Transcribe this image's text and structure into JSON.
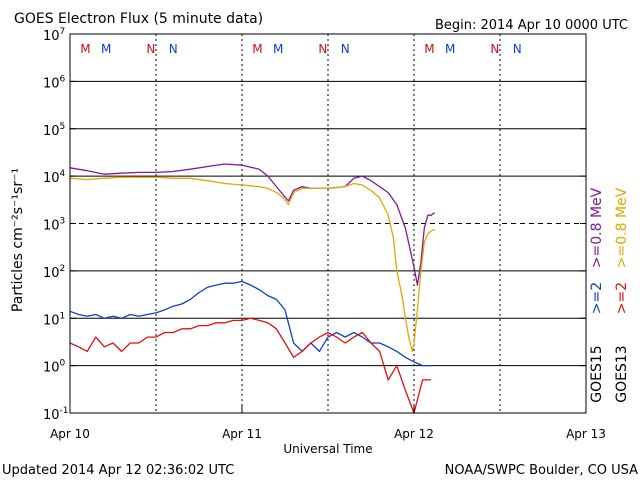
{
  "chart_data": {
    "type": "line",
    "title": "GOES Electron Flux (5 minute data)",
    "begin_label": "Begin: 2014 Apr 10 0000 UTC",
    "xlabel": "Universal Time",
    "ylabel": "Particles cm⁻²s⁻¹sr⁻¹",
    "x_unit": "days since 2014 Apr 10 00:00 UTC",
    "xlim": [
      0,
      3
    ],
    "ylim_log10": [
      -1,
      7
    ],
    "x_ticks": [
      {
        "x": 0,
        "label": "Apr 10"
      },
      {
        "x": 1,
        "label": "Apr 11"
      },
      {
        "x": 2,
        "label": "Apr 12"
      },
      {
        "x": 3,
        "label": "Apr 13"
      }
    ],
    "y_ticks": [
      {
        "exp": 7,
        "base": "10",
        "sup": "7"
      },
      {
        "exp": 6,
        "base": "10",
        "sup": "6"
      },
      {
        "exp": 5,
        "base": "10",
        "sup": "5"
      },
      {
        "exp": 4,
        "base": "10",
        "sup": "4"
      },
      {
        "exp": 3,
        "base": "10",
        "sup": "3"
      },
      {
        "exp": 2,
        "base": "10",
        "sup": "2"
      },
      {
        "exp": 1,
        "base": "10",
        "sup": "1"
      },
      {
        "exp": 0,
        "base": "10",
        "sup": "0"
      },
      {
        "exp": -1,
        "base": "10",
        "sup": "-1"
      }
    ],
    "grid_y_solid": [
      6,
      5,
      4,
      2,
      1,
      0
    ],
    "grid_y_dashed": [
      3
    ],
    "noon_dotted_x": [
      0.5,
      1.0,
      1.5,
      2.0,
      2.5
    ],
    "markers": [
      {
        "x": 0.09,
        "label": "M",
        "color": "#d01010"
      },
      {
        "x": 0.21,
        "label": "M",
        "color": "#1040c0"
      },
      {
        "x": 0.47,
        "label": "N",
        "color": "#d01010"
      },
      {
        "x": 0.6,
        "label": "N",
        "color": "#1040c0"
      },
      {
        "x": 1.09,
        "label": "M",
        "color": "#d01010"
      },
      {
        "x": 1.21,
        "label": "M",
        "color": "#1040c0"
      },
      {
        "x": 1.47,
        "label": "N",
        "color": "#d01010"
      },
      {
        "x": 1.6,
        "label": "N",
        "color": "#1040c0"
      },
      {
        "x": 2.09,
        "label": "M",
        "color": "#d01010"
      },
      {
        "x": 2.21,
        "label": "M",
        "color": "#1040c0"
      },
      {
        "x": 2.47,
        "label": "N",
        "color": "#d01010"
      },
      {
        "x": 2.6,
        "label": "N",
        "color": "#1040c0"
      }
    ],
    "legend": [
      {
        "text": ">=0.8 MeV",
        "color": "#7f1a9c"
      },
      {
        "text": ">=0.8 MeV",
        "color": "#e0a800"
      },
      {
        "text": ">=2",
        "color": "#1040c0"
      },
      {
        "text": ">=2",
        "color": "#e01010"
      },
      {
        "text": "GOES15",
        "color": "#000000"
      },
      {
        "text": "GOES13",
        "color": "#000000"
      }
    ],
    "series": [
      {
        "name": "GOES15 >=0.8 MeV",
        "color": "#7f1a9c",
        "x": [
          0,
          0.1,
          0.2,
          0.3,
          0.4,
          0.5,
          0.6,
          0.7,
          0.8,
          0.9,
          1.0,
          1.1,
          1.15,
          1.2,
          1.24,
          1.27,
          1.3,
          1.35,
          1.4,
          1.5,
          1.6,
          1.65,
          1.7,
          1.75,
          1.8,
          1.85,
          1.9,
          1.95,
          2.0,
          2.02,
          2.04,
          2.06,
          2.08,
          2.1,
          2.12
        ],
        "y": [
          15000,
          13000,
          11000,
          11500,
          12000,
          12000,
          12500,
          14000,
          16000,
          18000,
          17000,
          14000,
          10000,
          6000,
          4000,
          3000,
          5000,
          6000,
          5500,
          5500,
          6000,
          9000,
          10000,
          8000,
          6000,
          4500,
          2500,
          800,
          120,
          50,
          150,
          800,
          1500,
          1500,
          1700
        ]
      },
      {
        "name": "GOES13 >=0.8 MeV",
        "color": "#e0a800",
        "x": [
          0,
          0.1,
          0.2,
          0.3,
          0.4,
          0.5,
          0.6,
          0.7,
          0.8,
          0.9,
          1.0,
          1.1,
          1.15,
          1.2,
          1.24,
          1.27,
          1.3,
          1.35,
          1.4,
          1.5,
          1.6,
          1.65,
          1.7,
          1.75,
          1.8,
          1.85,
          1.88,
          1.9,
          1.93,
          1.95,
          1.97,
          1.99,
          2.0,
          2.02,
          2.04,
          2.06,
          2.08,
          2.1,
          2.12
        ],
        "y": [
          9000,
          8500,
          9000,
          9500,
          9500,
          9500,
          9000,
          9000,
          8000,
          7000,
          6500,
          6000,
          5500,
          4500,
          3500,
          2500,
          4500,
          5500,
          5500,
          5500,
          6000,
          7000,
          6500,
          5000,
          3500,
          1500,
          500,
          100,
          30,
          10,
          4,
          2,
          3,
          15,
          100,
          400,
          600,
          700,
          750
        ]
      },
      {
        "name": "GOES15 >=2 MeV",
        "color": "#1040c0",
        "x": [
          0,
          0.05,
          0.1,
          0.15,
          0.2,
          0.25,
          0.3,
          0.35,
          0.4,
          0.45,
          0.5,
          0.55,
          0.6,
          0.65,
          0.7,
          0.75,
          0.8,
          0.85,
          0.9,
          0.95,
          1.0,
          1.05,
          1.1,
          1.15,
          1.2,
          1.25,
          1.3,
          1.35,
          1.4,
          1.45,
          1.5,
          1.55,
          1.6,
          1.65,
          1.7,
          1.75,
          1.8,
          1.85,
          1.9,
          1.95,
          2.0,
          2.05,
          2.1
        ],
        "y": [
          14,
          12,
          11,
          12,
          10,
          11,
          10,
          12,
          11,
          12,
          13,
          15,
          18,
          20,
          25,
          35,
          45,
          50,
          55,
          55,
          60,
          50,
          40,
          30,
          25,
          15,
          3,
          2,
          3,
          2,
          4,
          5,
          4,
          5,
          4,
          3,
          3,
          2.5,
          2,
          1.5,
          1.2,
          1.0,
          1.0
        ]
      },
      {
        "name": "GOES13 >=2 MeV",
        "color": "#e01010",
        "x": [
          0,
          0.05,
          0.1,
          0.15,
          0.2,
          0.25,
          0.3,
          0.35,
          0.4,
          0.45,
          0.5,
          0.55,
          0.6,
          0.65,
          0.7,
          0.75,
          0.8,
          0.85,
          0.9,
          0.95,
          1.0,
          1.05,
          1.1,
          1.15,
          1.2,
          1.25,
          1.3,
          1.35,
          1.4,
          1.45,
          1.5,
          1.55,
          1.6,
          1.65,
          1.7,
          1.75,
          1.8,
          1.85,
          1.9,
          1.95,
          2.0,
          2.05,
          2.1
        ],
        "y": [
          3,
          2.5,
          2,
          4,
          2.5,
          3,
          2,
          3,
          3,
          4,
          4,
          5,
          5,
          6,
          6,
          7,
          7,
          8,
          8,
          9,
          9,
          10,
          9,
          8,
          6,
          3,
          1.5,
          2,
          3,
          4,
          5,
          4,
          3,
          4,
          5,
          3,
          2,
          0.5,
          1,
          0.3,
          0.1,
          0.5,
          0.5
        ]
      }
    ]
  },
  "footer": {
    "updated": "Updated 2014 Apr 12 02:36:02 UTC",
    "credit": "NOAA/SWPC Boulder, CO USA"
  }
}
